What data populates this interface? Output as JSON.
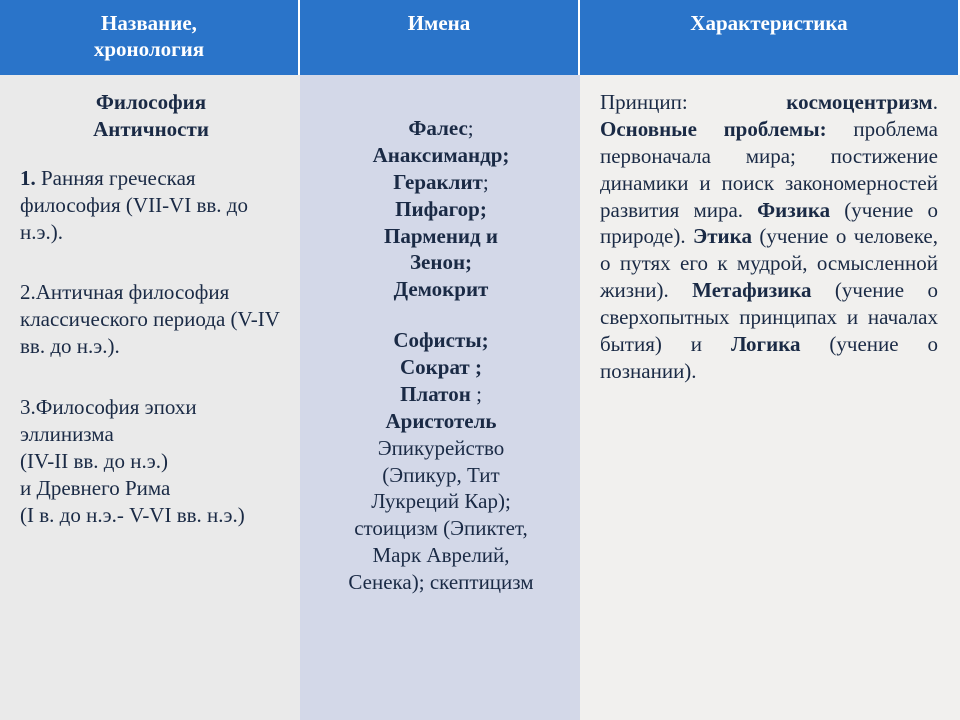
{
  "colors": {
    "header_bg": "#2a74c9",
    "header_fg": "#ffffff",
    "col1_bg": "#eaeaea",
    "col2_bg": "#d3d8e8",
    "col3_bg": "#f1f0ee",
    "body_fg": "#1a2a45"
  },
  "headers": {
    "col1_line1": "Название,",
    "col1_line2": "хронология",
    "col2": "Имена",
    "col3": "Характеристика"
  },
  "col1": {
    "title_line1": "Философия",
    "title_line2": "Античности",
    "p1_lead": "1.",
    "p1_rest": " Ранняя греческая философия (VII-VI вв. до н.э.).",
    "p2": "2.Античная философия классического периода (V-IV вв. до н.э.).",
    "p3_l1": "3.Философия эпохи эллинизма",
    "p3_l2": "(IV-II вв. до н.э.)",
    "p3_l3": "и Древнего Рима",
    "p3_l4": "(I в. до н.э.- V-VI вв. н.э.)"
  },
  "col2": {
    "b1_l1a": "Фалес",
    "b1_l1b": ";",
    "b1_l2": "Анаксимандр;",
    "b1_l3a": "Гераклит",
    "b1_l3b": ";",
    "b1_l4": "Пифагор;",
    "b1_l5": "Парменид и",
    "b1_l6": "Зенон;",
    "b1_l7": "Демокрит",
    "b2_l1": "Софисты;",
    "b2_l2": "Сократ ;",
    "b2_l3a": "Платон",
    "b2_l3b": " ;",
    "b2_l4": "Аристотель",
    "b3_l1": "Эпикурейство",
    "b3_l2": "(Эпикур, Тит",
    "b3_l3": "Лукреций Кар);",
    "b3_l4": "стоицизм (Эпиктет,",
    "b3_l5": "Марк Аврелий,",
    "b3_l6": "Сенека); скептицизм"
  },
  "col3": {
    "t1": "Принцип: ",
    "b1": "космоцентризм",
    "t2": ". ",
    "b2": "Основные проблемы:",
    "t3": " проблема первоначала мира; постижение динамики и поиск закономерностей развития мира. ",
    "b3": "Физика",
    "t4": " (учение о природе). ",
    "b4": "Этика",
    "t5": " (учение о человеке, о путях его к мудрой, осмысленной жизни). ",
    "b5": "Метафизика",
    "t6": " (учение о сверхопытных принципах и началах бытия) и ",
    "b6": "Логика",
    "t7": " (учение о познании)."
  }
}
